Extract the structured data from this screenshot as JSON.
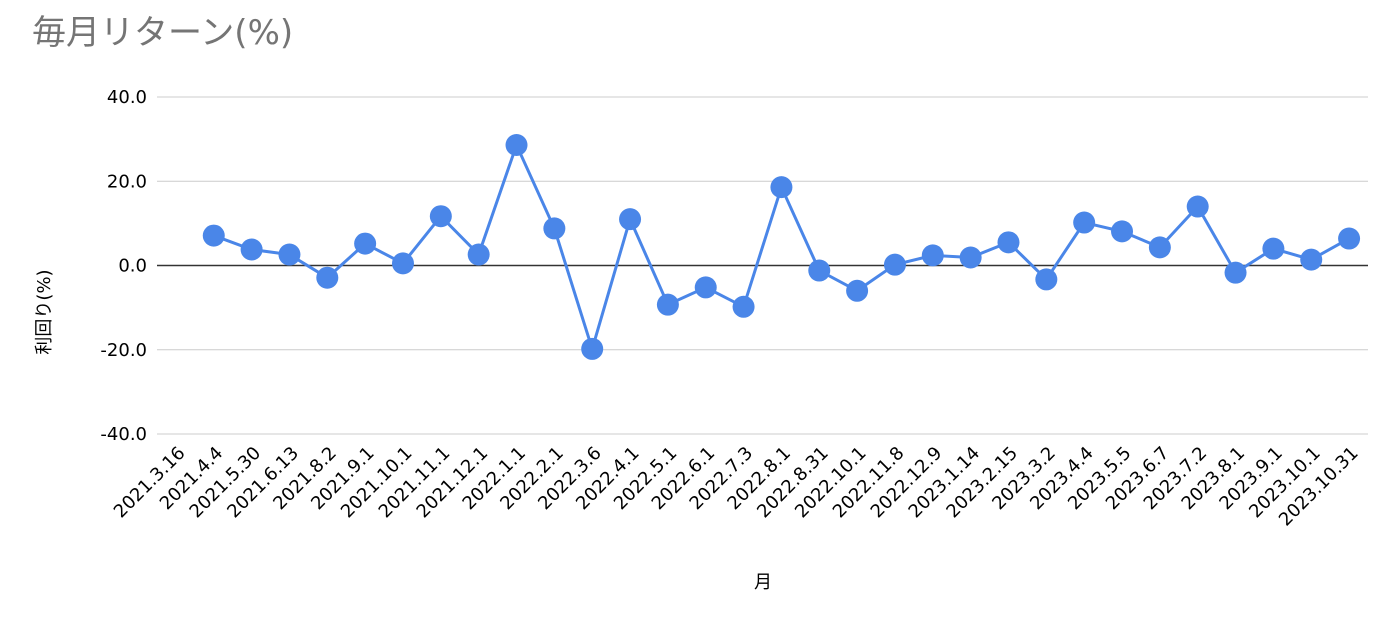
{
  "chart_data": {
    "type": "line",
    "title": "毎月リターン(%)",
    "x_label": "月",
    "y_label": "利回り(%)",
    "categories": [
      "2021.3.16",
      "2021.4.4",
      "2021.5.30",
      "2021.6.13",
      "2021.8.2",
      "2021.9.1",
      "2021.10.1",
      "2021.11.1",
      "2021.12.1",
      "2022.1.1",
      "2022.2.1",
      "2022.3.6",
      "2022.4.1",
      "2022.5.1",
      "2022.6.1",
      "2022.7.3",
      "2022.8.1",
      "2022.8.31",
      "2022.10.1",
      "2022.11.8",
      "2022.12.9",
      "2023.1.14",
      "2023.2.15",
      "2023.3.2",
      "2023.4.4",
      "2023.5.5",
      "2023.6.7",
      "2023.7.2",
      "2023.8.1",
      "2023.9.1",
      "2023.10.1",
      "2023.10.31"
    ],
    "series": [
      {
        "name": "利回り(%)",
        "color": "#4a86e8",
        "values": [
          null,
          7.1,
          3.8,
          2.6,
          -2.9,
          5.2,
          0.5,
          11.7,
          2.6,
          28.6,
          8.8,
          -19.8,
          11.0,
          -9.3,
          -5.2,
          -9.8,
          18.6,
          -1.2,
          -6.0,
          0.2,
          2.4,
          1.9,
          5.5,
          -3.3,
          10.2,
          8.1,
          4.3,
          14.0,
          -1.7,
          4.0,
          1.4,
          6.4
        ]
      }
    ],
    "ylim": [
      -40,
      40
    ],
    "yticks": [
      {
        "value": -40,
        "label": "-40.0"
      },
      {
        "value": -20,
        "label": "-20.0"
      },
      {
        "value": 0,
        "label": "0.0"
      },
      {
        "value": 20,
        "label": "20.0"
      },
      {
        "value": 40,
        "label": "40.0"
      }
    ],
    "grid": true
  }
}
